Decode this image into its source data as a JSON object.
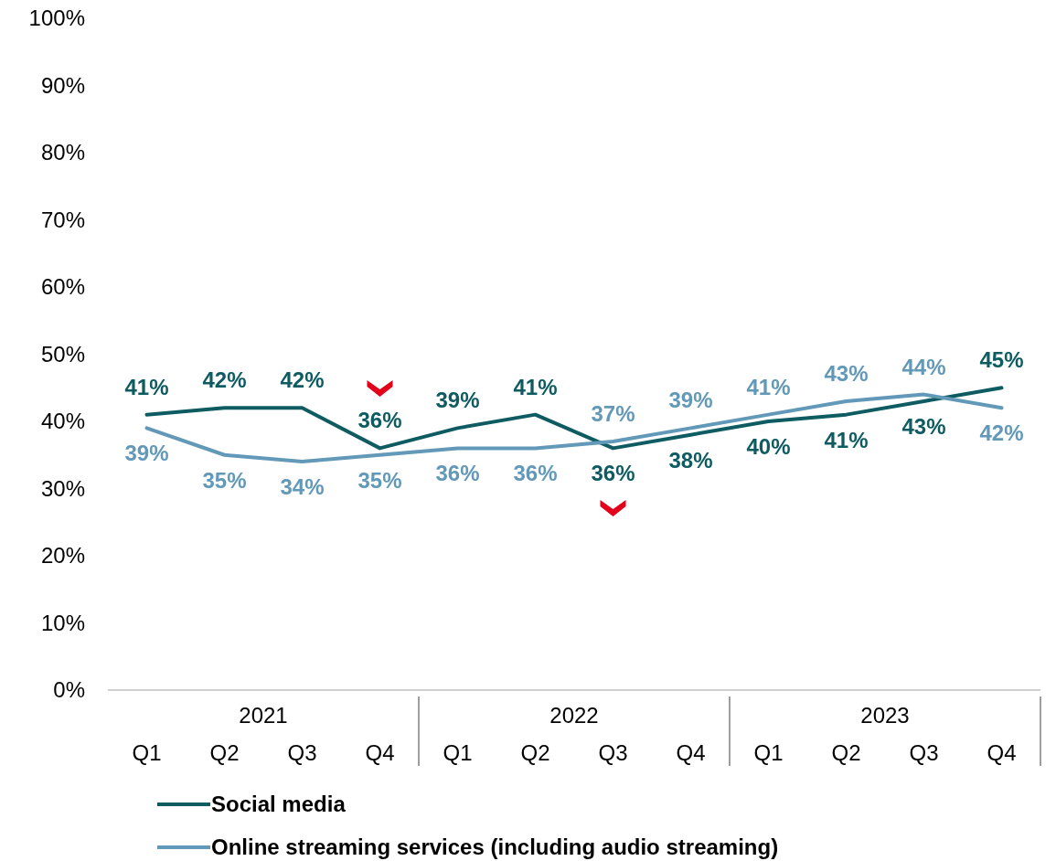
{
  "chart_data": {
    "type": "line",
    "categories": [
      "Q1",
      "Q2",
      "Q3",
      "Q4",
      "Q1",
      "Q2",
      "Q3",
      "Q4",
      "Q1",
      "Q2",
      "Q3",
      "Q4"
    ],
    "annotations": [
      "2021",
      "2022",
      "2023"
    ],
    "series": [
      {
        "name": "Social media",
        "color": "#0e5c61",
        "values": [
          41,
          42,
          42,
          36,
          39,
          41,
          36,
          38,
          40,
          41,
          43,
          45
        ],
        "value_labels": [
          "41%",
          "42%",
          "42%",
          "36%",
          "39%",
          "41%",
          "36%",
          "38%",
          "40%",
          "41%",
          "43%",
          "45%"
        ]
      },
      {
        "name": "Online streaming services (including audio streaming)",
        "color": "#6399b8",
        "values": [
          39,
          35,
          34,
          35,
          36,
          36,
          37,
          39,
          41,
          43,
          44,
          42
        ],
        "value_labels": [
          "39%",
          "35%",
          "34%",
          "35%",
          "36%",
          "36%",
          "37%",
          "39%",
          "41%",
          "43%",
          "44%",
          "42%"
        ]
      }
    ],
    "ylim": [
      0,
      100
    ],
    "yticks": [
      {
        "value": 0,
        "label": "0%"
      },
      {
        "value": 10,
        "label": "10%"
      },
      {
        "value": 20,
        "label": "20%"
      },
      {
        "value": 30,
        "label": "30%"
      },
      {
        "value": 40,
        "label": "40%"
      },
      {
        "value": 50,
        "label": "50%"
      },
      {
        "value": 60,
        "label": "60%"
      },
      {
        "value": 70,
        "label": "70%"
      },
      {
        "value": 80,
        "label": "80%"
      },
      {
        "value": 90,
        "label": "90%"
      },
      {
        "value": 100,
        "label": "100%"
      }
    ],
    "legend": "bottom",
    "line_style": "solid",
    "marker": "none"
  }
}
